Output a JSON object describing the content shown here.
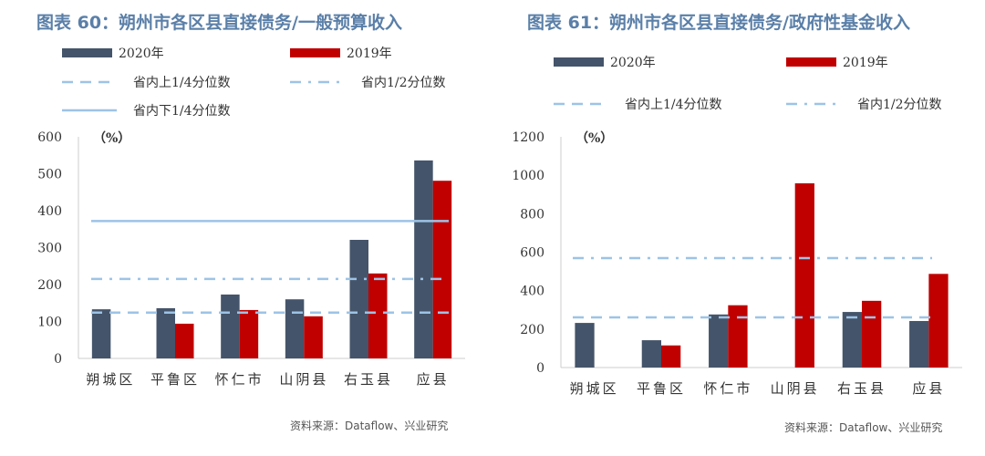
{
  "chart_data": [
    {
      "type": "bar",
      "title": "图表 60：朔州市各区县直接债务/一般预算收入",
      "unit": "（%）",
      "ylim": [
        0,
        600
      ],
      "yticks": [
        0,
        100,
        200,
        300,
        400,
        500,
        600
      ],
      "categories": [
        "朔城区",
        "平鲁区",
        "怀仁市",
        "山阴县",
        "右玉县",
        "应县"
      ],
      "series": [
        {
          "name": "2020年",
          "color": "#44546a",
          "values": [
            133,
            136,
            173,
            160,
            321,
            536
          ]
        },
        {
          "name": "2019年",
          "color": "#c00000",
          "values": [
            null,
            94,
            131,
            114,
            230,
            481
          ]
        }
      ],
      "lines": [
        {
          "name": "省内上1/4分位数",
          "style": "dash",
          "value": 124
        },
        {
          "name": "省内1/2分位数",
          "style": "dashdot",
          "value": 215
        },
        {
          "name": "省内下1/4分位数",
          "style": "solid",
          "value": 372
        }
      ],
      "source": "资料来源：Dataflow、兴业研究",
      "legend": "top"
    },
    {
      "type": "bar",
      "title": "图表 61：朔州市各区县直接债务/政府性基金收入",
      "unit": "（%）",
      "ylim": [
        0,
        1200
      ],
      "yticks": [
        0,
        200,
        400,
        600,
        800,
        1000,
        1200
      ],
      "categories": [
        "朔城区",
        "平鲁区",
        "怀仁市",
        "山阴县",
        "右玉县",
        "应县"
      ],
      "series": [
        {
          "name": "2020年",
          "color": "#44546a",
          "values": [
            232,
            142,
            276,
            null,
            289,
            242
          ]
        },
        {
          "name": "2019年",
          "color": "#c00000",
          "values": [
            null,
            115,
            324,
            958,
            347,
            487
          ]
        }
      ],
      "lines": [
        {
          "name": "省内上1/4分位数",
          "style": "dash",
          "value": 261
        },
        {
          "name": "省内1/2分位数",
          "style": "dashdot",
          "value": 569
        }
      ],
      "source": "资料来源：Dataflow、兴业研究",
      "legend": "top"
    }
  ]
}
